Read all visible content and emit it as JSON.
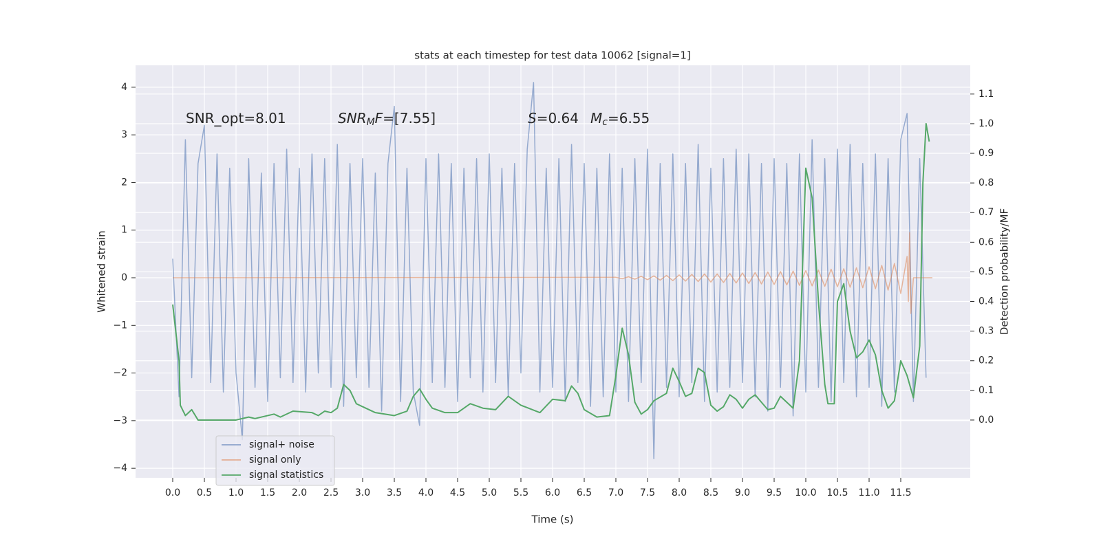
{
  "chart_data": {
    "type": "line",
    "title": "stats at each timestep for test data 10062 [signal=1]",
    "xlabel": "Time (s)",
    "ylabel": "Whitened strain",
    "y2label": "Detection probability/MF",
    "annotations": [
      {
        "parts": [
          "SNR_opt=8.01"
        ]
      },
      {
        "parts": [
          "SNR",
          "M",
          "F",
          "=[7.55]"
        ]
      },
      {
        "parts": [
          "S",
          "=0.64"
        ]
      },
      {
        "parts": [
          "M",
          "c",
          "=6.55"
        ]
      }
    ],
    "xlim": [
      -0.587,
      12.598
    ],
    "ylim": [
      -4.2,
      4.46
    ],
    "y2lim": [
      -0.195,
      1.197
    ],
    "xticks": [
      {
        "value": 0,
        "label": "0.0"
      },
      0.5,
      {
        "value": 1,
        "label": "1.0"
      },
      1.5,
      {
        "value": 2,
        "label": "2.0"
      },
      2.5,
      {
        "value": 3,
        "label": "3.0"
      },
      3.5,
      {
        "value": 4,
        "label": "4.0"
      },
      4.5,
      {
        "value": 5,
        "label": "5.0"
      },
      5.5,
      {
        "value": 6,
        "label": "6.0"
      },
      6.5,
      {
        "value": 7,
        "label": "7.0"
      },
      7.5,
      {
        "value": 8,
        "label": "8.0"
      },
      8.5,
      {
        "value": 9,
        "label": "9.0"
      },
      9.5,
      {
        "value": 10,
        "label": "10.0"
      },
      10.5,
      {
        "value": 11,
        "label": "11.0"
      },
      11.5
    ],
    "yticks": [
      {
        "value": -4,
        "label": "−4"
      },
      {
        "value": -3,
        "label": "−3"
      },
      {
        "value": -2,
        "label": "−2"
      },
      {
        "value": -1,
        "label": "−1"
      },
      0,
      1,
      2,
      3,
      4
    ],
    "y2ticks": [
      {
        "value": 0,
        "label": "0.0"
      },
      0.1,
      0.2,
      0.3,
      0.4,
      0.5,
      0.6,
      0.7,
      0.8,
      0.9,
      {
        "value": 1,
        "label": "1.0"
      },
      1.1
    ],
    "grid": true,
    "legend": "lower left",
    "series": [
      {
        "name": "signal+ noise",
        "color": "#4c72b0",
        "x": [
          0.0,
          0.1,
          0.2,
          0.3,
          0.4,
          0.5,
          0.6,
          0.7,
          0.8,
          0.9,
          1.0,
          1.1,
          1.2,
          1.3,
          1.4,
          1.5,
          1.6,
          1.7,
          1.8,
          1.9,
          2.0,
          2.1,
          2.2,
          2.3,
          2.4,
          2.5,
          2.6,
          2.7,
          2.8,
          2.9,
          3.0,
          3.1,
          3.2,
          3.3,
          3.4,
          3.5,
          3.6,
          3.7,
          3.8,
          3.9,
          4.0,
          4.1,
          4.2,
          4.3,
          4.4,
          4.5,
          4.6,
          4.7,
          4.8,
          4.9,
          5.0,
          5.1,
          5.2,
          5.3,
          5.4,
          5.5,
          5.6,
          5.7,
          5.8,
          5.9,
          6.0,
          6.1,
          6.2,
          6.3,
          6.4,
          6.5,
          6.6,
          6.7,
          6.8,
          6.9,
          7.0,
          7.1,
          7.2,
          7.3,
          7.4,
          7.5,
          7.6,
          7.7,
          7.8,
          7.9,
          8.0,
          8.1,
          8.2,
          8.3,
          8.4,
          8.5,
          8.6,
          8.7,
          8.8,
          8.9,
          9.0,
          9.1,
          9.2,
          9.3,
          9.4,
          9.5,
          9.6,
          9.7,
          9.8,
          9.9,
          10.0,
          10.1,
          10.2,
          10.3,
          10.4,
          10.5,
          10.6,
          10.7,
          10.8,
          10.9,
          11.0,
          11.1,
          11.2,
          11.3,
          11.4,
          11.5,
          11.6,
          11.7,
          11.8,
          11.9
        ],
        "values": [
          0.4,
          -2.5,
          2.9,
          -2.1,
          2.4,
          3.2,
          -2.2,
          2.6,
          -2.4,
          2.3,
          -2.0,
          -3.4,
          2.5,
          -2.3,
          2.2,
          -2.6,
          2.4,
          -2.1,
          2.7,
          -2.2,
          2.3,
          -2.4,
          2.6,
          -2.0,
          2.5,
          -2.3,
          2.8,
          -2.7,
          2.4,
          -2.1,
          2.5,
          -2.3,
          2.2,
          -2.8,
          2.4,
          3.6,
          -2.6,
          2.3,
          -2.4,
          -3.1,
          2.5,
          -2.2,
          2.6,
          -2.3,
          2.4,
          -2.6,
          2.3,
          -2.1,
          2.5,
          -2.4,
          2.6,
          -2.2,
          2.3,
          -2.5,
          2.4,
          -2.0,
          2.7,
          4.1,
          -2.4,
          2.3,
          -2.3,
          2.5,
          -2.6,
          2.8,
          -2.2,
          2.4,
          -2.7,
          2.3,
          -2.5,
          2.6,
          -2.4,
          2.3,
          -2.6,
          2.5,
          -2.2,
          2.7,
          -3.8,
          2.4,
          -2.3,
          2.6,
          -2.5,
          2.4,
          -2.2,
          2.8,
          -2.6,
          2.3,
          -2.4,
          2.5,
          -2.3,
          2.7,
          -2.2,
          2.6,
          -2.5,
          2.4,
          -2.8,
          2.5,
          -2.3,
          2.4,
          -2.9,
          2.6,
          -2.4,
          2.9,
          -2.3,
          2.5,
          -2.6,
          2.7,
          -2.2,
          2.8,
          -2.5,
          2.4,
          -2.3,
          2.6,
          -2.7,
          2.5,
          -2.4,
          2.9,
          3.45,
          -2.6,
          2.5,
          -2.1
        ]
      },
      {
        "name": "signal only",
        "color": "#dd8452",
        "x": [
          0,
          7.0,
          7.1,
          7.2,
          7.3,
          7.4,
          7.5,
          7.6,
          7.7,
          7.8,
          7.9,
          8.0,
          8.1,
          8.2,
          8.3,
          8.4,
          8.5,
          8.6,
          8.7,
          8.8,
          8.9,
          9.0,
          9.1,
          9.2,
          9.3,
          9.4,
          9.5,
          9.6,
          9.7,
          9.8,
          9.9,
          10.0,
          10.1,
          10.2,
          10.3,
          10.4,
          10.5,
          10.6,
          10.7,
          10.8,
          10.9,
          11.0,
          11.1,
          11.2,
          11.3,
          11.4,
          11.5,
          11.6,
          11.62,
          11.64,
          11.66,
          11.7,
          12.0
        ],
        "values": [
          0,
          0.01,
          -0.02,
          0.02,
          -0.03,
          0.03,
          -0.04,
          0.04,
          -0.05,
          0.05,
          -0.06,
          0.06,
          -0.07,
          0.07,
          -0.08,
          0.08,
          -0.09,
          0.08,
          -0.1,
          0.09,
          -0.11,
          0.1,
          -0.12,
          0.11,
          -0.13,
          0.12,
          -0.14,
          0.13,
          -0.15,
          0.14,
          -0.16,
          0.15,
          -0.17,
          0.16,
          -0.18,
          0.18,
          -0.19,
          0.19,
          -0.2,
          0.21,
          -0.21,
          0.23,
          -0.23,
          0.26,
          -0.26,
          0.3,
          -0.33,
          0.45,
          -0.5,
          0.95,
          -0.75,
          0,
          0
        ]
      },
      {
        "name": "signal statistics",
        "color": "#55a868",
        "axis": "y2",
        "x": [
          0,
          0.1,
          0.12,
          0.2,
          0.3,
          0.4,
          0.5,
          1.0,
          1.2,
          1.3,
          1.6,
          1.7,
          1.9,
          2.2,
          2.3,
          2.4,
          2.5,
          2.6,
          2.7,
          2.8,
          2.9,
          3.0,
          3.2,
          3.5,
          3.7,
          3.8,
          3.9,
          4.0,
          4.1,
          4.3,
          4.5,
          4.7,
          4.9,
          5.1,
          5.3,
          5.5,
          5.8,
          6.0,
          6.2,
          6.3,
          6.4,
          6.5,
          6.7,
          6.9,
          7.0,
          7.1,
          7.2,
          7.3,
          7.4,
          7.5,
          7.6,
          7.8,
          7.9,
          8.0,
          8.1,
          8.2,
          8.3,
          8.4,
          8.5,
          8.6,
          8.7,
          8.8,
          8.9,
          9.0,
          9.1,
          9.2,
          9.3,
          9.4,
          9.5,
          9.6,
          9.7,
          9.8,
          9.9,
          10.0,
          10.1,
          10.2,
          10.3,
          10.35,
          10.45,
          10.5,
          10.6,
          10.7,
          10.8,
          10.9,
          11.0,
          11.1,
          11.2,
          11.3,
          11.4,
          11.5,
          11.6,
          11.7,
          11.8,
          11.85,
          11.9,
          11.95
        ],
        "values": [
          0.39,
          0.2,
          0.05,
          0.015,
          0.035,
          0.0,
          0.0,
          0.0,
          0.01,
          0.005,
          0.02,
          0.01,
          0.03,
          0.025,
          0.015,
          0.03,
          0.025,
          0.04,
          0.12,
          0.1,
          0.055,
          0.045,
          0.025,
          0.015,
          0.03,
          0.08,
          0.105,
          0.07,
          0.04,
          0.025,
          0.025,
          0.055,
          0.04,
          0.035,
          0.08,
          0.05,
          0.025,
          0.07,
          0.065,
          0.115,
          0.09,
          0.035,
          0.01,
          0.015,
          0.15,
          0.31,
          0.22,
          0.06,
          0.02,
          0.035,
          0.065,
          0.09,
          0.175,
          0.13,
          0.08,
          0.09,
          0.175,
          0.16,
          0.05,
          0.03,
          0.045,
          0.085,
          0.07,
          0.04,
          0.07,
          0.085,
          0.06,
          0.035,
          0.04,
          0.08,
          0.06,
          0.04,
          0.2,
          0.85,
          0.75,
          0.4,
          0.12,
          0.055,
          0.055,
          0.4,
          0.46,
          0.3,
          0.21,
          0.23,
          0.27,
          0.22,
          0.1,
          0.04,
          0.065,
          0.2,
          0.15,
          0.075,
          0.25,
          0.8,
          1.0,
          0.94
        ]
      }
    ]
  }
}
